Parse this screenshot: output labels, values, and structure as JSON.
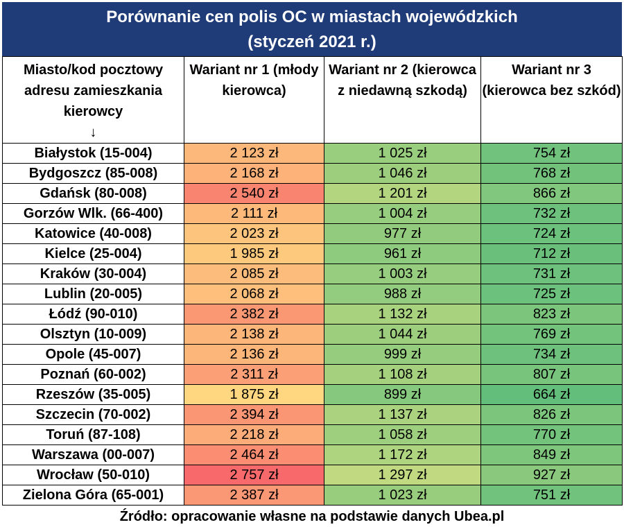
{
  "title_line1": "Porównanie cen polis OC w miastach wojewódzkich",
  "title_line2": "(styczeń 2021 r.)",
  "headers": {
    "city": "Miasto/kod pocztowy adresu zamieszkania kierowcy",
    "city_arrow": "↓",
    "v1": "Wariant nr 1 (młody kierowca)",
    "v2": "Wariant nr 2 (kierowca z niedawną szkodą)",
    "v3": "Wariant nr 3 (kierowca bez szkód)"
  },
  "source": "Źródło: opracowanie własne na podstawie danych Ubea.pl",
  "chart_data": {
    "type": "table",
    "title": "Porównanie cen polis OC w miastach wojewódzkich (styczeń 2021 r.)",
    "unit": "zł",
    "rows": [
      {
        "city": "Białystok (15-004)",
        "v1": 2123,
        "v2": 1025,
        "v3": 754
      },
      {
        "city": "Bydgoszcz (85-008)",
        "v1": 2168,
        "v2": 1046,
        "v3": 768
      },
      {
        "city": "Gdańsk (80-008)",
        "v1": 2540,
        "v2": 1201,
        "v3": 866
      },
      {
        "city": "Gorzów Wlk. (66-400)",
        "v1": 2111,
        "v2": 1004,
        "v3": 732
      },
      {
        "city": "Katowice (40-008)",
        "v1": 2023,
        "v2": 977,
        "v3": 724
      },
      {
        "city": "Kielce (25-004)",
        "v1": 1985,
        "v2": 961,
        "v3": 712
      },
      {
        "city": "Kraków (30-004)",
        "v1": 2085,
        "v2": 1003,
        "v3": 731
      },
      {
        "city": "Lublin (20-005)",
        "v1": 2068,
        "v2": 988,
        "v3": 725
      },
      {
        "city": "Łódź (90-010)",
        "v1": 2382,
        "v2": 1132,
        "v3": 823
      },
      {
        "city": "Olsztyn (10-009)",
        "v1": 2138,
        "v2": 1044,
        "v3": 769
      },
      {
        "city": "Opole (45-007)",
        "v1": 2136,
        "v2": 999,
        "v3": 734
      },
      {
        "city": "Poznań (60-002)",
        "v1": 2311,
        "v2": 1108,
        "v3": 807
      },
      {
        "city": "Rzeszów (35-005)",
        "v1": 1875,
        "v2": 899,
        "v3": 664
      },
      {
        "city": "Szczecin (70-002)",
        "v1": 2394,
        "v2": 1137,
        "v3": 826
      },
      {
        "city": "Toruń (87-108)",
        "v1": 2218,
        "v2": 1058,
        "v3": 770
      },
      {
        "city": "Warszawa (00-007)",
        "v1": 2464,
        "v2": 1172,
        "v3": 849
      },
      {
        "city": "Wrocław (50-010)",
        "v1": 2757,
        "v2": 1297,
        "v3": 927
      },
      {
        "city": "Zielona Góra (65-001)",
        "v1": 2387,
        "v2": 1023,
        "v3": 751
      }
    ],
    "color_scale": {
      "low": "#63be7b",
      "mid": "#ffeb84",
      "high": "#f8696b"
    }
  }
}
